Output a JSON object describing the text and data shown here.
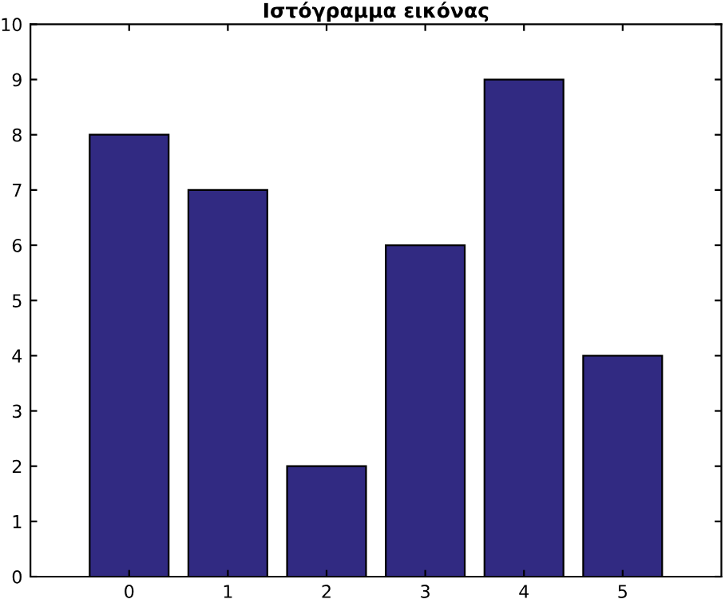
{
  "chart_data": {
    "type": "bar",
    "title": "Ιστόγραμμα εικόνας",
    "x": [
      0,
      1,
      2,
      3,
      4,
      5
    ],
    "values": [
      8,
      7,
      2,
      6,
      9,
      4
    ],
    "color": "#312a82",
    "xlim": [
      -1,
      6
    ],
    "xticks": [
      0,
      1,
      2,
      3,
      4,
      5
    ],
    "ylim": [
      0,
      10
    ],
    "yticks": [
      0,
      1,
      2,
      3,
      4,
      5,
      6,
      7,
      8,
      9,
      10
    ],
    "grid": false,
    "legend": false
  }
}
